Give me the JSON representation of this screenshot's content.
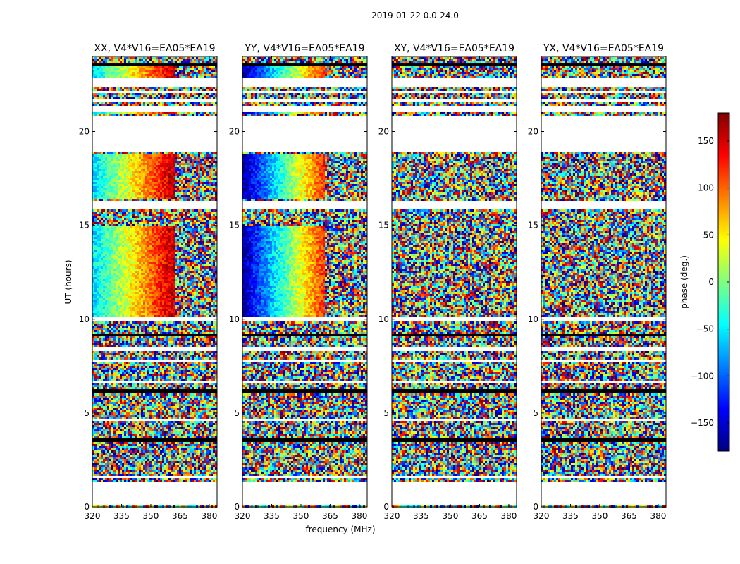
{
  "chart_data": {
    "type": "heatmap",
    "title": "2019-01-22 0.0-24.0",
    "xlabel": "frequency (MHz)",
    "ylabel": "UT (hours)",
    "xlim": [
      320,
      384
    ],
    "ylim": [
      0,
      24
    ],
    "x_ticks": [
      320,
      335,
      350,
      365,
      380
    ],
    "y_ticks": [
      0,
      5,
      10,
      15,
      20
    ],
    "colormap": "jet",
    "colorbar": {
      "label": "phase (deg.)",
      "range": [
        -180,
        180
      ],
      "ticks": [
        -150,
        -100,
        -50,
        0,
        50,
        100,
        150
      ]
    },
    "panels": [
      {
        "title": "XX, V4*V16=EA05*EA19",
        "pattern": "gradient",
        "phase_start": -60,
        "phase_end": 160,
        "break_MHz": 362
      },
      {
        "title": "YY, V4*V16=EA05*EA19",
        "pattern": "gradient",
        "phase_start": -170,
        "phase_end": 120,
        "break_MHz": 362
      },
      {
        "title": "XY, V4*V16=EA05*EA19",
        "pattern": "noise"
      },
      {
        "title": "YX, V4*V16=EA05*EA19",
        "pattern": "noise"
      }
    ],
    "data_gaps_hours": [
      [
        0.02,
        1.3
      ],
      [
        1.55,
        1.65
      ],
      [
        4.6,
        4.75
      ],
      [
        6.6,
        6.75
      ],
      [
        7.7,
        7.85
      ],
      [
        8.35,
        8.55
      ],
      [
        9.85,
        10.05
      ],
      [
        15.9,
        16.3
      ],
      [
        18.9,
        20.8
      ],
      [
        21.05,
        21.4
      ],
      [
        21.65,
        21.75
      ],
      [
        22.0,
        22.2
      ],
      [
        22.4,
        22.8
      ],
      [
        24.0,
        24.0
      ]
    ],
    "flagged_rows_hours": [
      [
        3.5,
        3.7
      ],
      [
        6.1,
        6.3
      ],
      [
        9.05,
        9.2
      ],
      [
        23.5,
        23.62
      ]
    ]
  }
}
